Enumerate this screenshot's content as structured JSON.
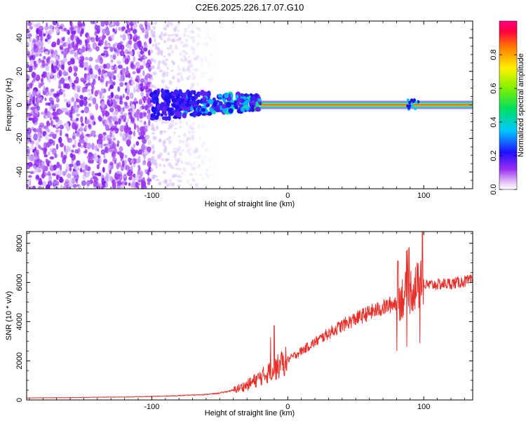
{
  "title": "C2E6.2025.226.17.07.G10",
  "chart_data": [
    {
      "type": "heatmap",
      "xlabel": "Height of straight line (km)",
      "ylabel": "Frequency (Hz)",
      "xlim": [
        -192,
        136
      ],
      "ylim": [
        -50,
        50
      ],
      "xticks": [
        -100,
        0,
        100
      ],
      "xtick_labels": [
        "-100",
        "0",
        "100"
      ],
      "yticks": [
        -40,
        -20,
        0,
        20,
        40
      ],
      "ytick_labels": [
        "-40",
        "-20",
        "0",
        "20",
        "40"
      ],
      "colorbar": {
        "label": "Normalized spectral amplitude",
        "range": [
          0,
          1
        ],
        "ticks": [
          0.0,
          0.2,
          0.4,
          0.6,
          0.8
        ],
        "tick_labels": [
          "0.0",
          "0.2",
          "0.4",
          "0.6",
          "0.8"
        ]
      },
      "ridge": {
        "frequency": 0,
        "start_height": -100,
        "solid_from": -20
      },
      "grid": false
    },
    {
      "type": "line",
      "xlabel": "Height of straight line (km)",
      "ylabel": "SNR (10 * v/v)",
      "xlim": [
        -192,
        136
      ],
      "ylim": [
        0,
        8600
      ],
      "xticks": [
        -100,
        0,
        100
      ],
      "xtick_labels": [
        "-100",
        "0",
        "100"
      ],
      "yticks": [
        0,
        2000,
        4000,
        6000,
        8000
      ],
      "ytick_labels": [
        "0",
        "2000",
        "4000",
        "6000",
        "8000"
      ],
      "color": "#e8302a",
      "series": [
        {
          "x": [
            -192,
            -180,
            -160,
            -140,
            -120,
            -100,
            -80,
            -60,
            -50,
            -40,
            -30,
            -20,
            -10,
            0,
            10,
            20,
            30,
            40,
            50,
            60,
            70,
            80,
            85,
            90,
            95,
            100,
            110,
            120,
            130,
            136
          ],
          "values": [
            100,
            110,
            120,
            140,
            150,
            180,
            220,
            280,
            350,
            500,
            750,
            1150,
            1550,
            2050,
            2500,
            2950,
            3400,
            3800,
            4150,
            4450,
            4700,
            5000,
            5300,
            5600,
            5800,
            5850,
            5900,
            5950,
            6050,
            6100
          ]
        }
      ],
      "grid": false
    }
  ]
}
